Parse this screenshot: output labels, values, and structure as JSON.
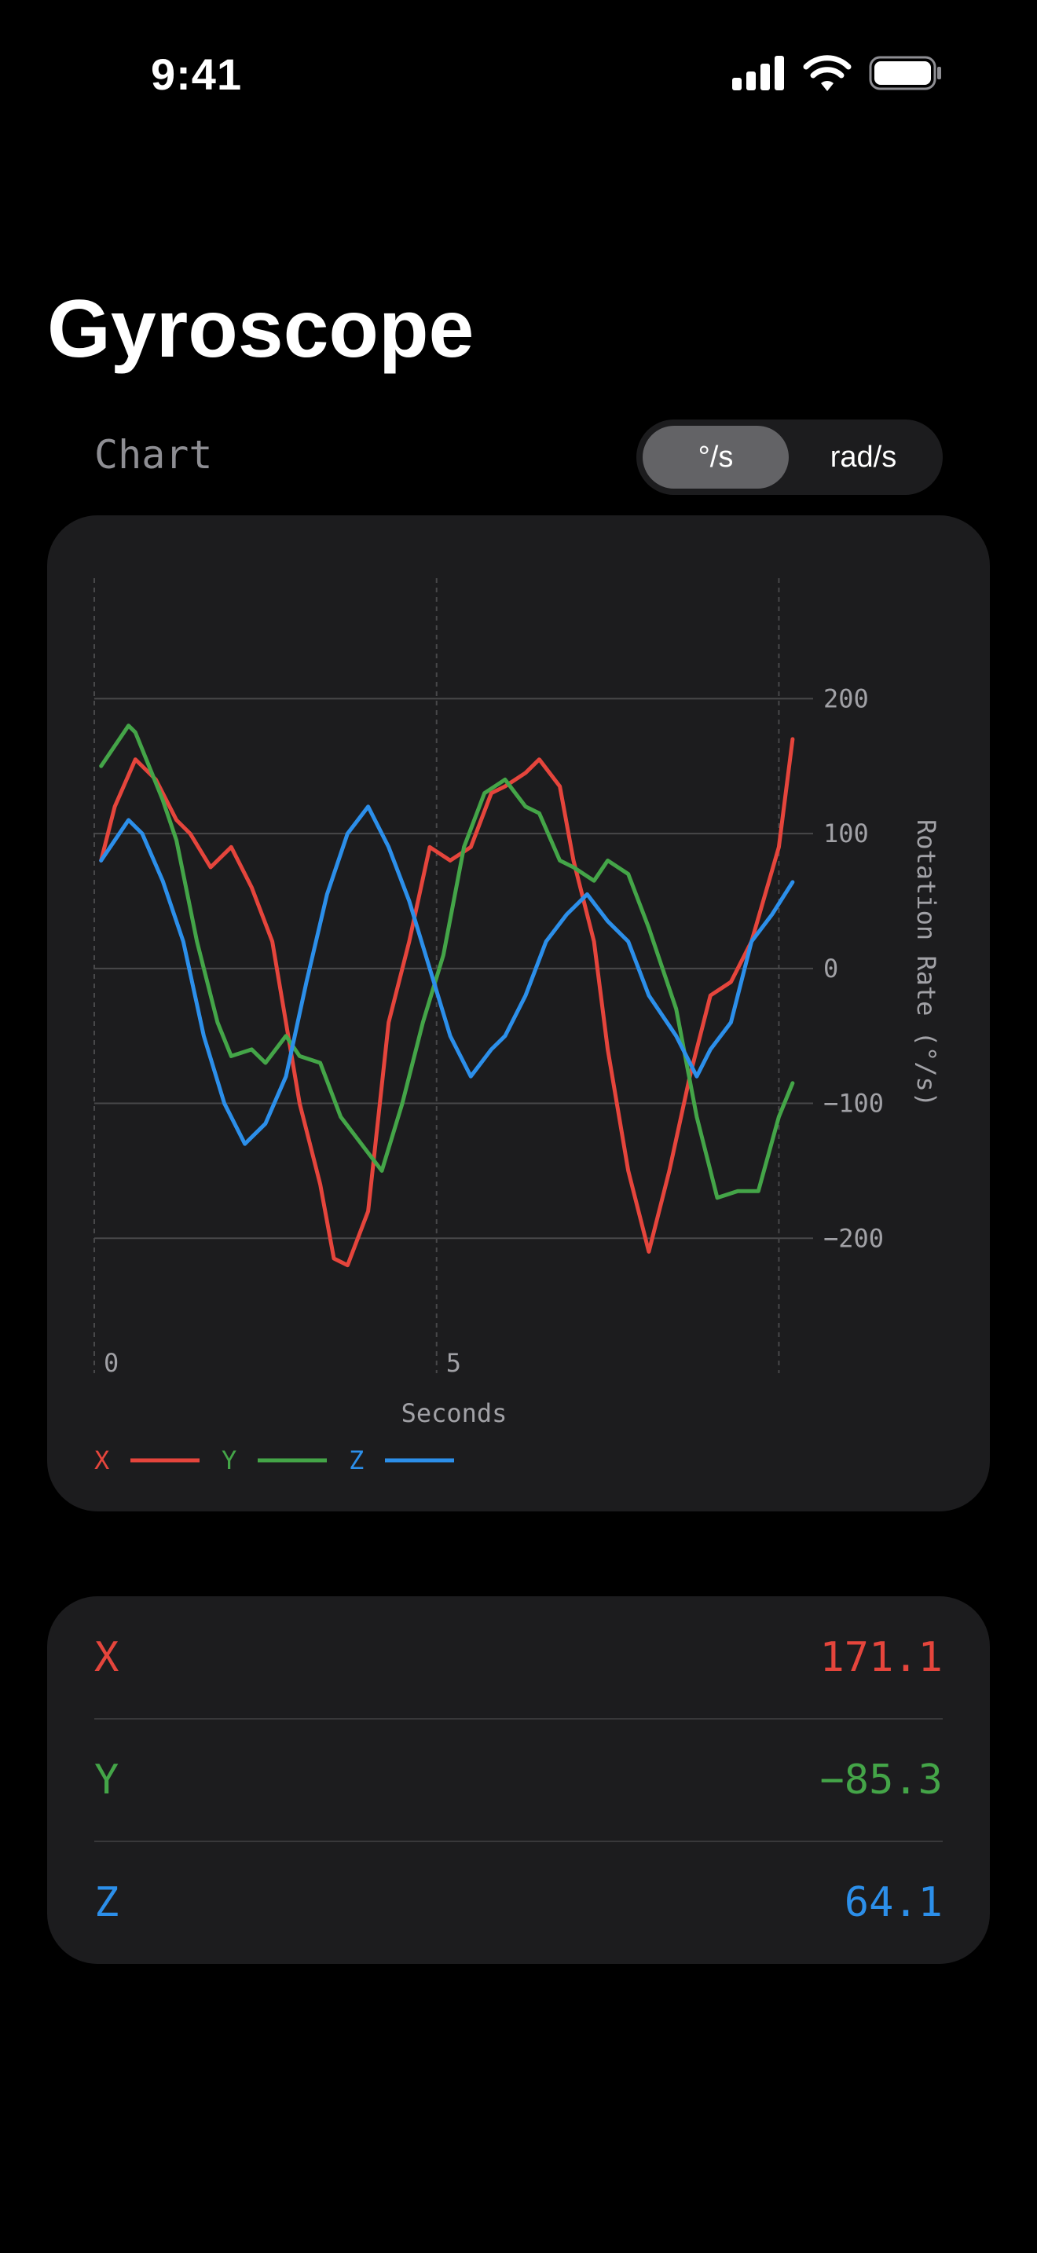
{
  "status_bar": {
    "time": "9:41"
  },
  "page": {
    "title": "Gyroscope",
    "section_label": "Chart"
  },
  "unit_toggle": {
    "options": [
      "°/s",
      "rad/s"
    ],
    "selected": "°/s"
  },
  "colors": {
    "x": "#e5453c",
    "y": "#44a548",
    "z": "#2c8fea",
    "background": "#000000",
    "card": "#1c1c1e"
  },
  "chart_data": {
    "type": "line",
    "xlabel": "Seconds",
    "ylabel": "Rotation Rate (°/s)",
    "xlim": [
      0,
      10.5
    ],
    "ylim": [
      -300,
      280
    ],
    "x_ticks": [
      0,
      5
    ],
    "y_ticks": [
      200,
      100,
      0,
      -100,
      -200
    ],
    "grid": true,
    "legend": "bottom-left",
    "series": [
      {
        "name": "X",
        "color": "#e5453c",
        "x": [
          0.1,
          0.3,
          0.6,
          0.9,
          1.2,
          1.4,
          1.7,
          2.0,
          2.3,
          2.6,
          2.8,
          3.0,
          3.3,
          3.5,
          3.7,
          4.0,
          4.3,
          4.6,
          4.9,
          5.2,
          5.5,
          5.8,
          6.0,
          6.3,
          6.5,
          6.8,
          7.0,
          7.3,
          7.5,
          7.8,
          8.1,
          8.4,
          8.7,
          9.0,
          9.3,
          9.6,
          10.0,
          10.2
        ],
        "y": [
          80,
          120,
          155,
          140,
          110,
          100,
          75,
          90,
          60,
          20,
          -40,
          -100,
          -160,
          -215,
          -220,
          -180,
          -40,
          20,
          90,
          80,
          90,
          130,
          135,
          145,
          155,
          135,
          80,
          20,
          -60,
          -150,
          -210,
          -150,
          -80,
          -20,
          -10,
          20,
          90,
          170
        ]
      },
      {
        "name": "Y",
        "color": "#44a548",
        "x": [
          0.1,
          0.3,
          0.5,
          0.6,
          0.8,
          1.0,
          1.2,
          1.5,
          1.8,
          2.0,
          2.3,
          2.5,
          2.8,
          3.0,
          3.3,
          3.6,
          3.9,
          4.2,
          4.5,
          4.8,
          5.1,
          5.4,
          5.7,
          6.0,
          6.3,
          6.5,
          6.8,
          7.0,
          7.3,
          7.5,
          7.8,
          8.1,
          8.5,
          8.8,
          9.1,
          9.4,
          9.7,
          10.0,
          10.2
        ],
        "y": [
          150,
          165,
          180,
          175,
          150,
          125,
          95,
          20,
          -40,
          -65,
          -60,
          -70,
          -50,
          -65,
          -70,
          -110,
          -130,
          -150,
          -100,
          -40,
          10,
          90,
          130,
          140,
          120,
          115,
          80,
          75,
          65,
          80,
          70,
          30,
          -30,
          -110,
          -170,
          -165,
          -165,
          -110,
          -85
        ]
      },
      {
        "name": "Z",
        "color": "#2c8fea",
        "x": [
          0.1,
          0.3,
          0.5,
          0.7,
          1.0,
          1.3,
          1.6,
          1.9,
          2.2,
          2.5,
          2.8,
          3.1,
          3.4,
          3.7,
          4.0,
          4.3,
          4.6,
          4.9,
          5.2,
          5.5,
          5.8,
          6.0,
          6.3,
          6.6,
          6.9,
          7.2,
          7.5,
          7.8,
          8.1,
          8.5,
          8.8,
          9.0,
          9.3,
          9.6,
          9.9,
          10.2
        ],
        "y": [
          80,
          95,
          110,
          100,
          65,
          20,
          -50,
          -100,
          -130,
          -115,
          -80,
          -10,
          55,
          100,
          120,
          90,
          50,
          0,
          -50,
          -80,
          -60,
          -50,
          -20,
          20,
          40,
          55,
          35,
          20,
          -20,
          -50,
          -80,
          -60,
          -40,
          20,
          40,
          64
        ]
      }
    ]
  },
  "readings": [
    {
      "label": "X",
      "value": "171.1",
      "color": "#e5453c"
    },
    {
      "label": "Y",
      "value": "−85.3",
      "color": "#44a548"
    },
    {
      "label": "Z",
      "value": "64.1",
      "color": "#2c8fea"
    }
  ]
}
